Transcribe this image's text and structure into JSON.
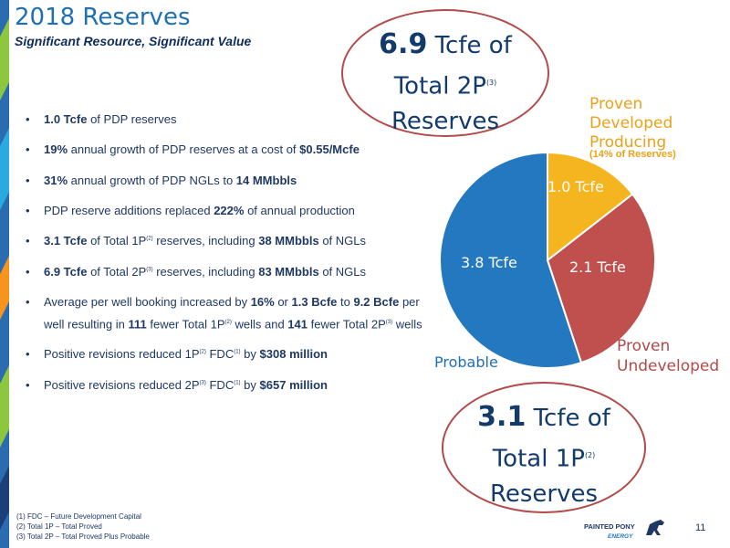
{
  "header": {
    "title": "2018 Reserves",
    "subtitle": "Significant Resource, Significant Value"
  },
  "bullets": [
    {
      "parts": [
        {
          "b": "1.0 Tcfe"
        },
        {
          "t": " of PDP reserves"
        }
      ]
    },
    {
      "parts": [
        {
          "b": "19%"
        },
        {
          "t": " annual growth of PDP reserves at a cost of "
        },
        {
          "b": "$0.55/Mcfe"
        }
      ]
    },
    {
      "parts": [
        {
          "b": "31%"
        },
        {
          "t": " annual growth of PDP NGLs to "
        },
        {
          "b": "14 MMbbls"
        }
      ]
    },
    {
      "parts": [
        {
          "t": "PDP reserve additions replaced "
        },
        {
          "b": "222%"
        },
        {
          "t": " of annual production"
        }
      ]
    },
    {
      "parts": [
        {
          "b": "3.1 Tcfe"
        },
        {
          "t": " of Total 1P"
        },
        {
          "s": "(2)"
        },
        {
          "t": " reserves, including "
        },
        {
          "b": "38 MMbbls"
        },
        {
          "t": " of NGLs"
        }
      ]
    },
    {
      "parts": [
        {
          "b": "6.9 Tcfe"
        },
        {
          "t": " of Total 2P"
        },
        {
          "s": "(3)"
        },
        {
          "t": " reserves, including "
        },
        {
          "b": "83 MMbbls"
        },
        {
          "t": " of NGLs"
        }
      ]
    },
    {
      "multi": true,
      "parts": [
        {
          "t": "Average per well booking increased by "
        },
        {
          "b": "16%"
        },
        {
          "t": " or "
        },
        {
          "b": "1.3 Bcfe"
        },
        {
          "t": " to "
        },
        {
          "b": "9.2 Bcfe"
        },
        {
          "t": " per well resulting in "
        },
        {
          "b": "111"
        },
        {
          "t": " fewer Total 1P"
        },
        {
          "s": "(2)"
        },
        {
          "t": "  wells and "
        },
        {
          "b": "141"
        },
        {
          "t": " fewer Total 2P"
        },
        {
          "s": "(3)"
        },
        {
          "t": " wells"
        }
      ]
    },
    {
      "parts": [
        {
          "t": "Positive revisions reduced 1P"
        },
        {
          "s": "(2)"
        },
        {
          "t": "  FDC"
        },
        {
          "s": "(1)"
        },
        {
          "t": " by "
        },
        {
          "b": "$308 million"
        }
      ]
    },
    {
      "parts": [
        {
          "t": "Positive revisions reduced 2P"
        },
        {
          "s": "(3)"
        },
        {
          "t": " FDC"
        },
        {
          "s": "(1)"
        },
        {
          "t": " by "
        },
        {
          "b": "$657 million"
        }
      ]
    }
  ],
  "callout_2p": {
    "value": "6.9",
    "unit": " Tcfe of",
    "line2": "Total 2P",
    "sup": "(3)",
    "line3": "Reserves"
  },
  "callout_1p": {
    "value": "3.1",
    "unit": " Tcfe of",
    "line2": "Total 1P",
    "sup": "(2)",
    "line3": "Reserves"
  },
  "pie_labels": {
    "pdp_line1": "Proven",
    "pdp_line2": "Developed",
    "pdp_line3": "Producing",
    "pdp_note": "(14% of Reserves)",
    "pud_line1": "Proven",
    "pud_line2": "Undeveloped",
    "probable": "Probable"
  },
  "chart_data": {
    "type": "pie",
    "series": [
      {
        "name": "Proven Developed Producing",
        "label": "1.0 Tcfe",
        "value": 1.0,
        "color": "#f4b51e"
      },
      {
        "name": "Proven Undeveloped",
        "label": "2.1 Tcfe",
        "value": 2.1,
        "color": "#c0504d"
      },
      {
        "name": "Probable",
        "label": "3.8 Tcfe",
        "value": 3.8,
        "color": "#2378bf"
      }
    ]
  },
  "footnotes": [
    "(1) FDC – Future Development Capital",
    "(2) Total 1P – Total Proved",
    "(3) Total 2P – Total Proved Plus Probable"
  ],
  "logo": {
    "line1": "PAINTED PONY",
    "line2": "ENERGY"
  },
  "page_number": "11"
}
